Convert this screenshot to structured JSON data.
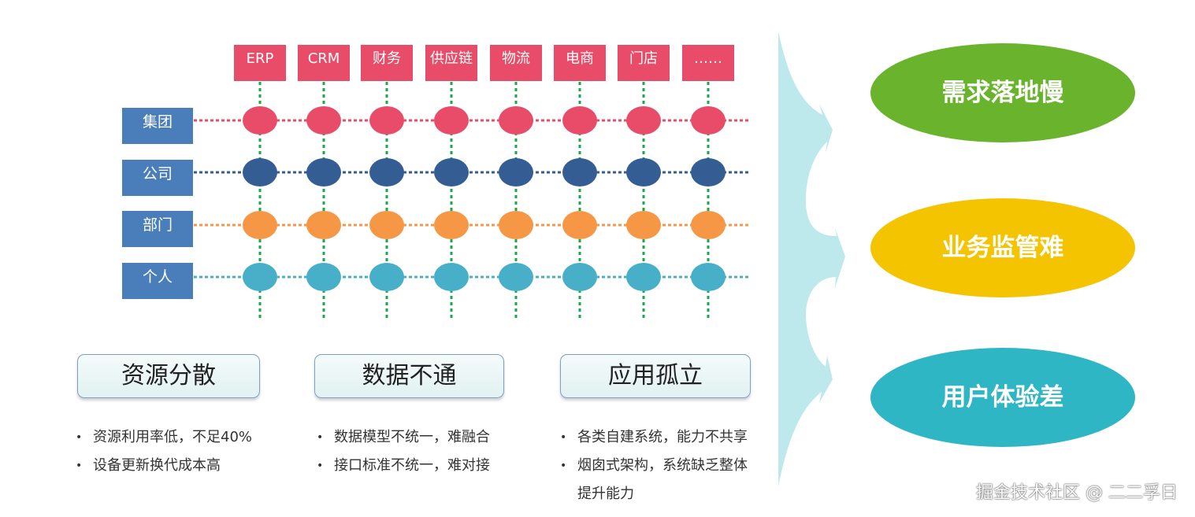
{
  "systems": [
    "ERP",
    "CRM",
    "财务",
    "供应链",
    "物流",
    "电商",
    "门店",
    "……"
  ],
  "levels": [
    {
      "label": "集团",
      "color": "#e84c68"
    },
    {
      "label": "公司",
      "color": "#345d93"
    },
    {
      "label": "部门",
      "color": "#f59744"
    },
    {
      "label": "个人",
      "color": "#48afc8"
    }
  ],
  "level_box_color": "#4a7ebb",
  "vertical_line_color": "#1aa84e",
  "arrow_color": "#bde9ec",
  "issues": [
    {
      "title": "资源分散",
      "bullets": [
        "资源利用率低，不足40%",
        "设备更新换代成本高"
      ]
    },
    {
      "title": "数据不通",
      "bullets": [
        "数据模型不统一，难融合",
        "接口标准不统一，难对接"
      ]
    },
    {
      "title": "应用孤立",
      "bullets": [
        "各类自建系统，能力不共享",
        "烟囱式架构，系统缺乏整体"
      ],
      "continuation": "提升能力"
    }
  ],
  "outcomes": [
    {
      "label": "需求落地慢",
      "color": "#6ab42d"
    },
    {
      "label": "业务监管难",
      "color": "#f5c400"
    },
    {
      "label": "用户体验差",
      "color": "#2fb6c4"
    }
  ],
  "watermark": "掘金技术社区 @ 二二孚日"
}
